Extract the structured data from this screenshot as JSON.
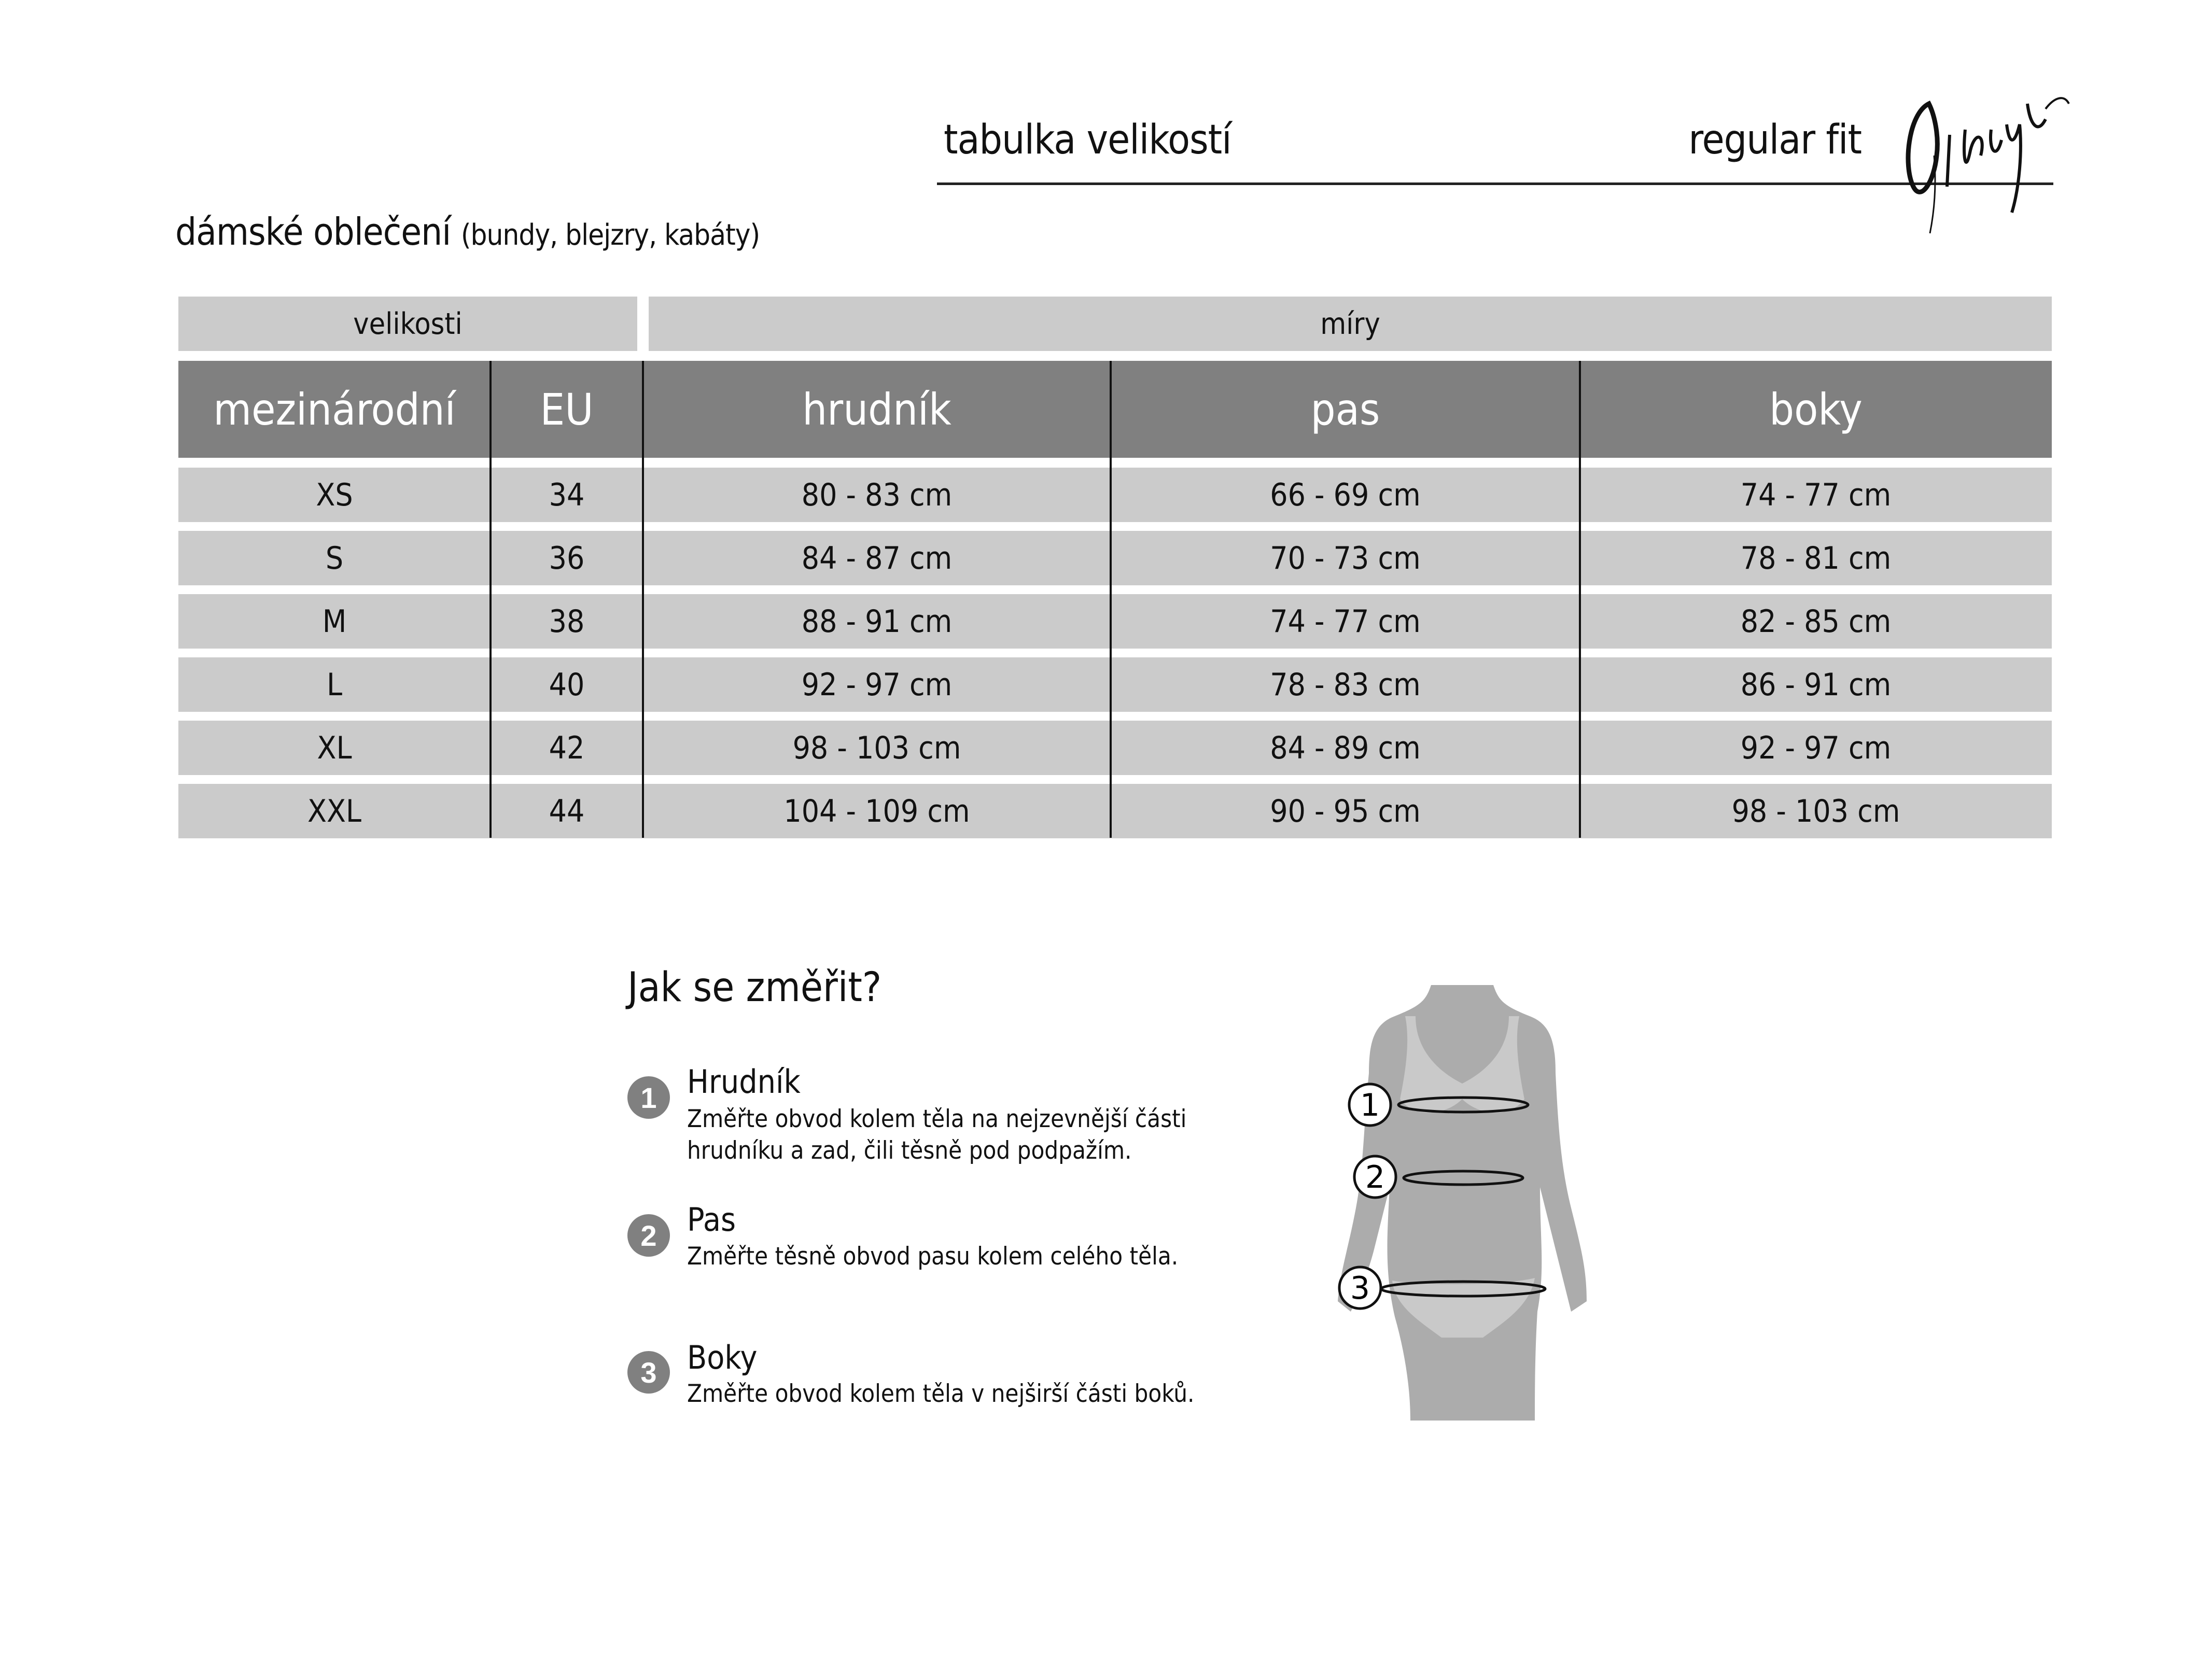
{
  "header": {
    "title": "tabulka velikostí",
    "fit": "regular fit",
    "logo_text": "Gipsy"
  },
  "subtitle": {
    "main": "dámské oblečení",
    "detail": "(bundy, blejzry, kabáty)"
  },
  "table": {
    "group_headers": [
      "velikosti",
      "míry"
    ],
    "columns": [
      "mezinárodní",
      "EU",
      "hrudník",
      "pas",
      "boky"
    ],
    "rows": [
      [
        "XS",
        "34",
        "80 - 83 cm",
        "66 - 69 cm",
        "74 - 77 cm"
      ],
      [
        "S",
        "36",
        "84 - 87 cm",
        "70 - 73 cm",
        "78 - 81 cm"
      ],
      [
        "M",
        "38",
        "88 - 91 cm",
        "74 - 77 cm",
        "82 - 85 cm"
      ],
      [
        "L",
        "40",
        "92 - 97 cm",
        "78 - 83 cm",
        "86 - 91 cm"
      ],
      [
        "XL",
        "42",
        "98 - 103 cm",
        "84 - 89 cm",
        "92 - 97 cm"
      ],
      [
        "XXL",
        "44",
        "104 - 109 cm",
        "90 - 95 cm",
        "98 - 103 cm"
      ]
    ]
  },
  "howto": {
    "title": "Jak se změřit?",
    "items": [
      {
        "num": "1",
        "title": "Hrudník",
        "desc": [
          "Změřte obvod kolem těla na nejzevnější části",
          "hrudníku a zad, čili těsně pod podpažím."
        ]
      },
      {
        "num": "2",
        "title": "Pas",
        "desc": [
          "Změřte těsně obvod pasu kolem celého těla."
        ]
      },
      {
        "num": "3",
        "title": "Boky",
        "desc": [
          "Změřte obvod kolem těla v nejširší části boků."
        ]
      }
    ]
  },
  "colors": {
    "header_dark": "#808080",
    "row_light": "#cbcbcb",
    "badge": "#808080"
  }
}
